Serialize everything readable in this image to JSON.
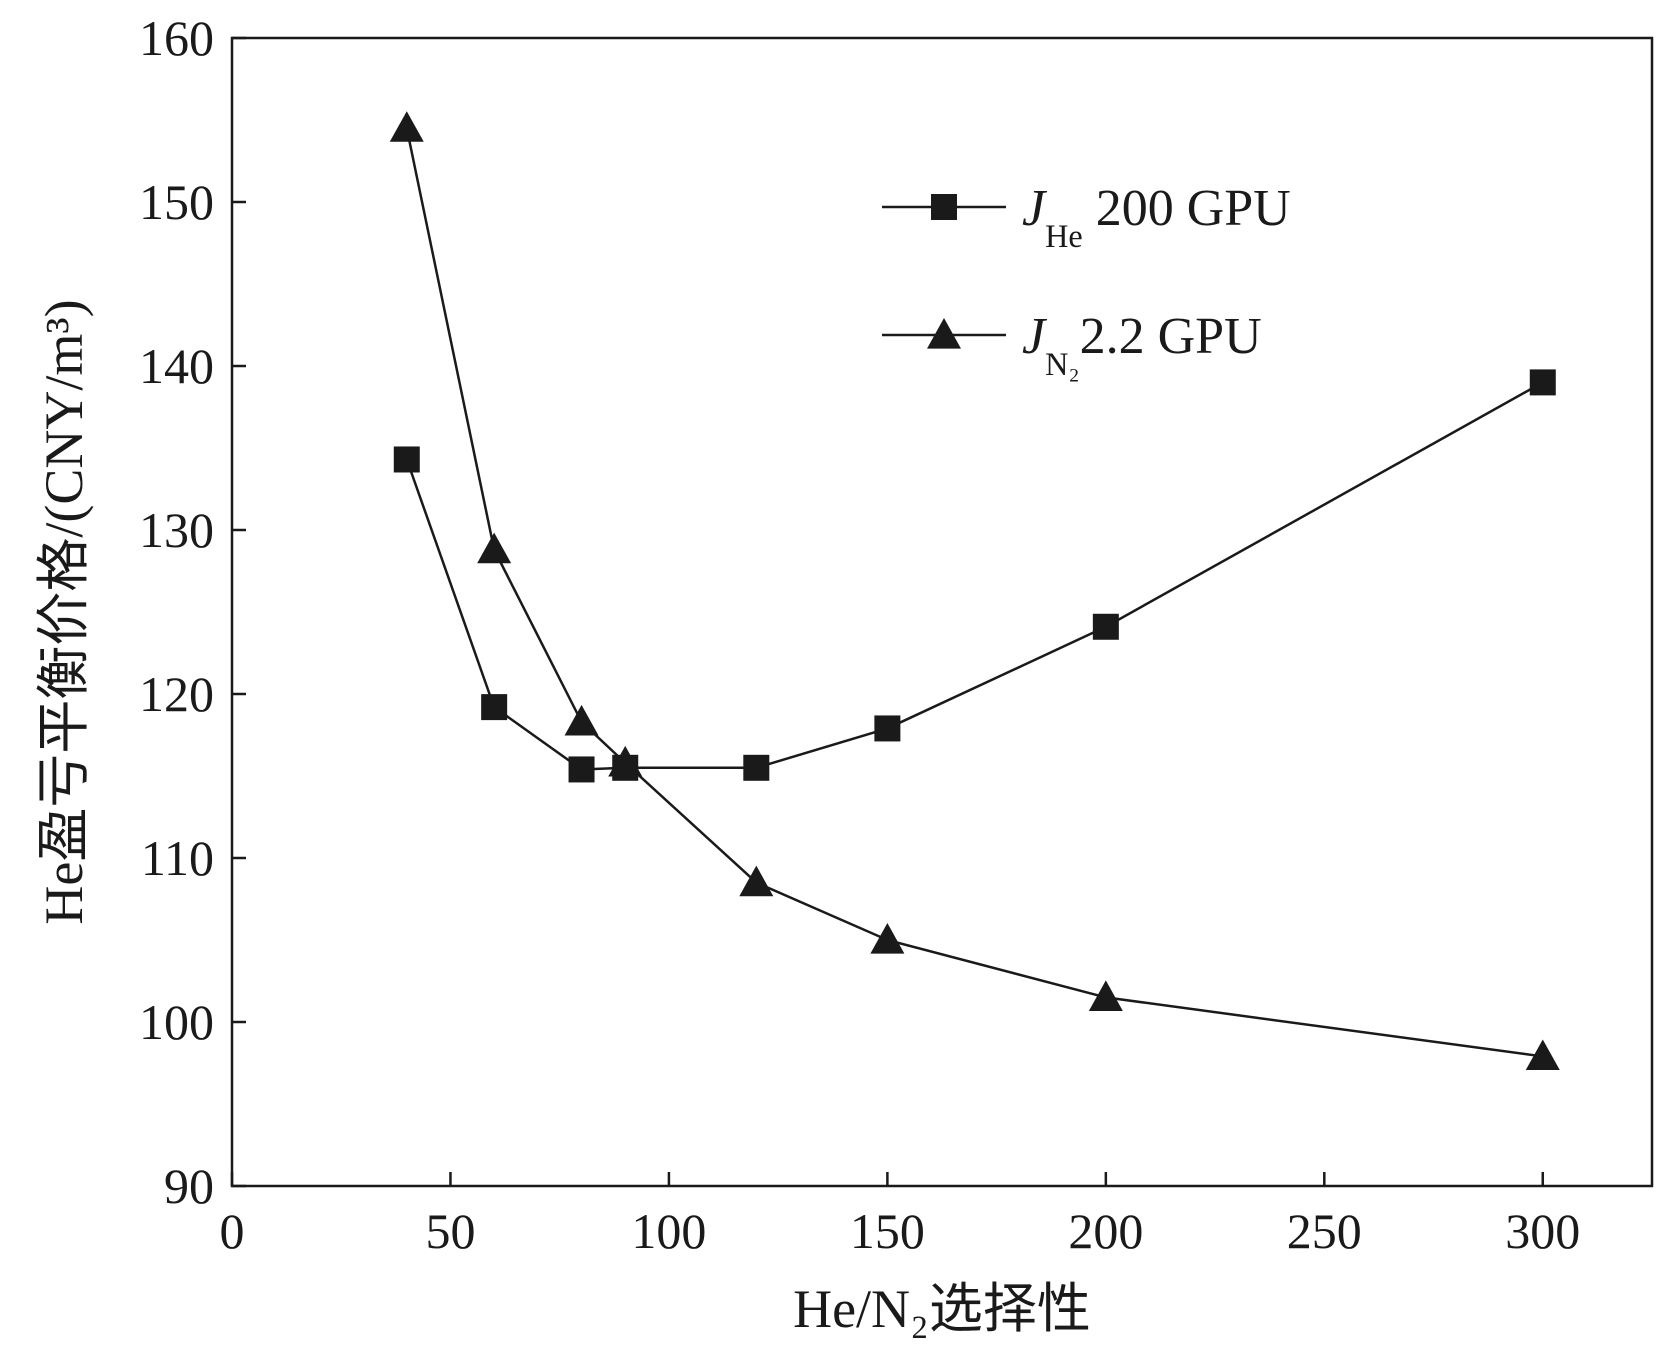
{
  "chart_data": {
    "type": "line",
    "title": "",
    "xlabel": "He/N₂选择性",
    "ylabel": "He盈亏平衡价格/(CNY/m³)",
    "xlim": [
      0,
      325
    ],
    "ylim": [
      90,
      160
    ],
    "xticks": [
      0,
      50,
      100,
      150,
      200,
      250,
      300
    ],
    "yticks": [
      90,
      100,
      110,
      120,
      130,
      140,
      150,
      160
    ],
    "legend_position": "top-right",
    "series": [
      {
        "name": "J_He 200 GPU",
        "legend_main": "J",
        "legend_sub": "He",
        "legend_rest": " 200 GPU",
        "marker": "square",
        "x": [
          40,
          60,
          80,
          90,
          120,
          150,
          200,
          300
        ],
        "y": [
          134.3,
          119.2,
          115.4,
          115.5,
          115.5,
          117.9,
          124.1,
          139.0
        ]
      },
      {
        "name": "J_N2 2.2 GPU",
        "legend_main": "J",
        "legend_sub": "N₂",
        "legend_rest": "2.2 GPU",
        "marker": "triangle",
        "x": [
          40,
          60,
          80,
          90,
          120,
          150,
          200,
          300
        ],
        "y": [
          154.5,
          128.8,
          118.3,
          115.8,
          108.5,
          105.0,
          101.5,
          97.9
        ]
      }
    ]
  },
  "colors": {
    "line": "#1a1a1a",
    "marker": "#1a1a1a",
    "background": "#ffffff"
  }
}
